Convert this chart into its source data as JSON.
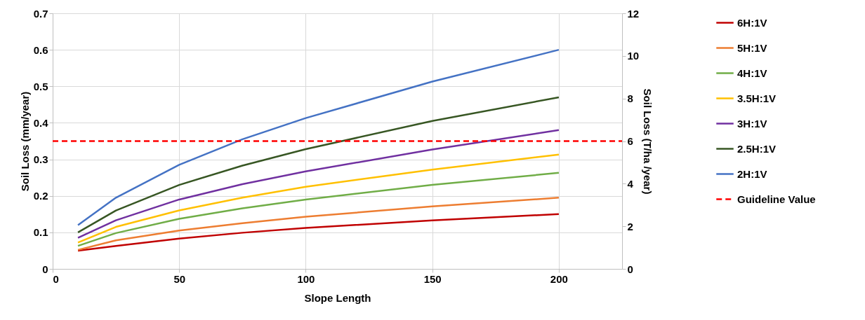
{
  "chart_data": {
    "type": "line",
    "xlabel": "Slope Length",
    "ylabel": "Soil Loss (mm/year)",
    "y2label": "Soil Loss (T/ha /year)",
    "x": [
      10,
      25,
      50,
      75,
      100,
      150,
      200
    ],
    "series": [
      {
        "name": "6H:1V",
        "color": "#c00000",
        "values": [
          0.05,
          0.063,
          0.083,
          0.099,
          0.112,
          0.133,
          0.15
        ]
      },
      {
        "name": "5H:1V",
        "color": "#ed7d31",
        "values": [
          0.052,
          0.078,
          0.105,
          0.125,
          0.143,
          0.171,
          0.195
        ]
      },
      {
        "name": "4H:1V",
        "color": "#70ad47",
        "values": [
          0.063,
          0.098,
          0.137,
          0.166,
          0.19,
          0.23,
          0.263
        ]
      },
      {
        "name": "3.5H:1V",
        "color": "#ffc000",
        "values": [
          0.072,
          0.115,
          0.16,
          0.195,
          0.225,
          0.272,
          0.313
        ]
      },
      {
        "name": "3H:1V",
        "color": "#7030a0",
        "values": [
          0.085,
          0.133,
          0.19,
          0.232,
          0.267,
          0.327,
          0.38
        ]
      },
      {
        "name": "2.5H:1V",
        "color": "#375623",
        "values": [
          0.1,
          0.16,
          0.23,
          0.283,
          0.328,
          0.405,
          0.47
        ]
      },
      {
        "name": "2H:1V",
        "color": "#4472c4",
        "values": [
          0.12,
          0.195,
          0.285,
          0.355,
          0.413,
          0.513,
          0.6
        ]
      }
    ],
    "ref_lines": [
      {
        "axis": "y",
        "value": 0.35,
        "label": "Guideline Value",
        "color": "#ff0000",
        "line_style": "dashed"
      }
    ],
    "xlim": [
      0,
      225
    ],
    "xticks": [
      0,
      50,
      100,
      150,
      200
    ],
    "ylim": [
      0,
      0.7
    ],
    "yticks": [
      0,
      0.1,
      0.2,
      0.3,
      0.4,
      0.5,
      0.6,
      0.7
    ],
    "y2lim": [
      0,
      12
    ],
    "y2ticks": [
      0,
      2,
      4,
      6,
      8,
      10,
      12
    ],
    "grid": true,
    "legend": "right",
    "marker": "none",
    "line_style": "solid"
  }
}
